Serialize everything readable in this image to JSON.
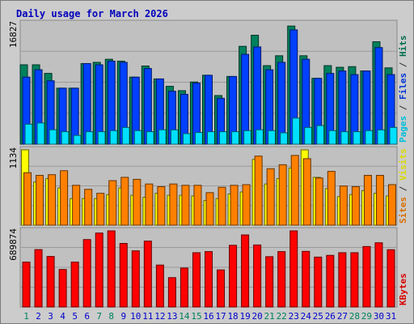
{
  "title": "Daily usage for March 2026",
  "chart_data": [
    {
      "type": "bar",
      "panel": "pages-files-hits",
      "ymax_label": "16827",
      "ylim": [
        0,
        16827
      ],
      "grid": true,
      "categories": [
        "1",
        "2",
        "3",
        "4",
        "5",
        "6",
        "7",
        "8",
        "9",
        "10",
        "11",
        "12",
        "13",
        "14",
        "15",
        "16",
        "17",
        "18",
        "19",
        "20",
        "21",
        "22",
        "23",
        "24",
        "25",
        "26",
        "27",
        "28",
        "29",
        "30",
        "31"
      ],
      "weekend_days": [
        "1",
        "7",
        "8",
        "14",
        "15",
        "21",
        "22",
        "28",
        "29"
      ],
      "legend_parts": [
        "Pages",
        "Files",
        "Hits"
      ],
      "legend_separator": " / ",
      "series": [
        {
          "name": "Hits",
          "color": "#00805c",
          "values": [
            11070,
            11070,
            9870,
            7810,
            7810,
            11240,
            11410,
            11840,
            11580,
            9350,
            10900,
            9100,
            8070,
            7460,
            8670,
            9610,
            6780,
            9440,
            13640,
            15190,
            10950,
            12330,
            16470,
            12330,
            9180,
            10950,
            10720,
            10810,
            10210,
            14280,
            10640
          ]
        },
        {
          "name": "Files",
          "color": "#0040ff",
          "values": [
            9350,
            10380,
            8840,
            7810,
            7810,
            11240,
            11070,
            11580,
            11410,
            9350,
            10550,
            9100,
            7380,
            6950,
            8520,
            9610,
            6400,
            9440,
            12530,
            13560,
            10380,
            11410,
            15940,
            11840,
            9180,
            9870,
            10210,
            9700,
            10210,
            13470,
            9700
          ]
        },
        {
          "name": "Pages",
          "color": "#00e0ff",
          "values": [
            2790,
            2950,
            2010,
            1740,
            1220,
            1740,
            1740,
            1890,
            2330,
            1890,
            1740,
            2010,
            1990,
            1470,
            1630,
            1740,
            1740,
            1740,
            1890,
            2010,
            1890,
            1580,
            3640,
            2330,
            2590,
            1890,
            1740,
            1740,
            1890,
            1990,
            2330
          ]
        }
      ]
    },
    {
      "type": "bar",
      "panel": "sites-visits",
      "ymax_label": "1134",
      "ylim": [
        0,
        1134
      ],
      "grid": true,
      "categories": [
        "1",
        "2",
        "3",
        "4",
        "5",
        "6",
        "7",
        "8",
        "9",
        "10",
        "11",
        "12",
        "13",
        "14",
        "15",
        "16",
        "17",
        "18",
        "19",
        "20",
        "21",
        "22",
        "23",
        "24",
        "25",
        "26",
        "27",
        "28",
        "29",
        "30",
        "31"
      ],
      "legend_parts": [
        "Sites",
        "Visits"
      ],
      "legend_separator": " / ",
      "series": [
        {
          "name": "Visits",
          "color": "#ffff00",
          "values": [
            1134,
            650,
            700,
            560,
            400,
            400,
            400,
            460,
            560,
            450,
            420,
            480,
            450,
            450,
            440,
            370,
            400,
            470,
            500,
            990,
            620,
            700,
            860,
            1134,
            720,
            550,
            430,
            460,
            520,
            480,
            440
          ]
        },
        {
          "name": "Sites",
          "color": "#ff8000",
          "values": [
            790,
            750,
            760,
            820,
            600,
            540,
            480,
            670,
            720,
            690,
            620,
            580,
            620,
            600,
            600,
            490,
            570,
            600,
            610,
            1040,
            850,
            910,
            1050,
            1001,
            710,
            810,
            590,
            580,
            750,
            750,
            610
          ]
        }
      ]
    },
    {
      "type": "bar",
      "panel": "kbytes",
      "ymax_label": "689874",
      "ylim": [
        0,
        689874
      ],
      "grid": true,
      "categories": [
        "1",
        "2",
        "3",
        "4",
        "5",
        "6",
        "7",
        "8",
        "9",
        "10",
        "11",
        "12",
        "13",
        "14",
        "15",
        "16",
        "17",
        "18",
        "19",
        "20",
        "21",
        "22",
        "23",
        "24",
        "25",
        "26",
        "27",
        "28",
        "29",
        "30",
        "31"
      ],
      "legend_parts": [
        "KBytes"
      ],
      "legend_separator": " / ",
      "series": [
        {
          "name": "KBytes",
          "color": "#ff0000",
          "values": [
            407000,
            520000,
            458000,
            340000,
            407000,
            611000,
            670000,
            689874,
            576000,
            509000,
            597000,
            380000,
            266000,
            353000,
            492000,
            502000,
            336000,
            559000,
            653000,
            562000,
            456000,
            502000,
            689874,
            504000,
            452000,
            468000,
            492000,
            492000,
            548000,
            582000,
            519000
          ]
        }
      ]
    }
  ],
  "colors": {
    "frame": "#cccccc",
    "border": "#7a7a7a",
    "plot_bg": "#c0c0c0",
    "grid": "#9a9a9a",
    "title": "#0000bb",
    "weekday_label": "#0000cc",
    "weekend_label": "#00805c"
  }
}
